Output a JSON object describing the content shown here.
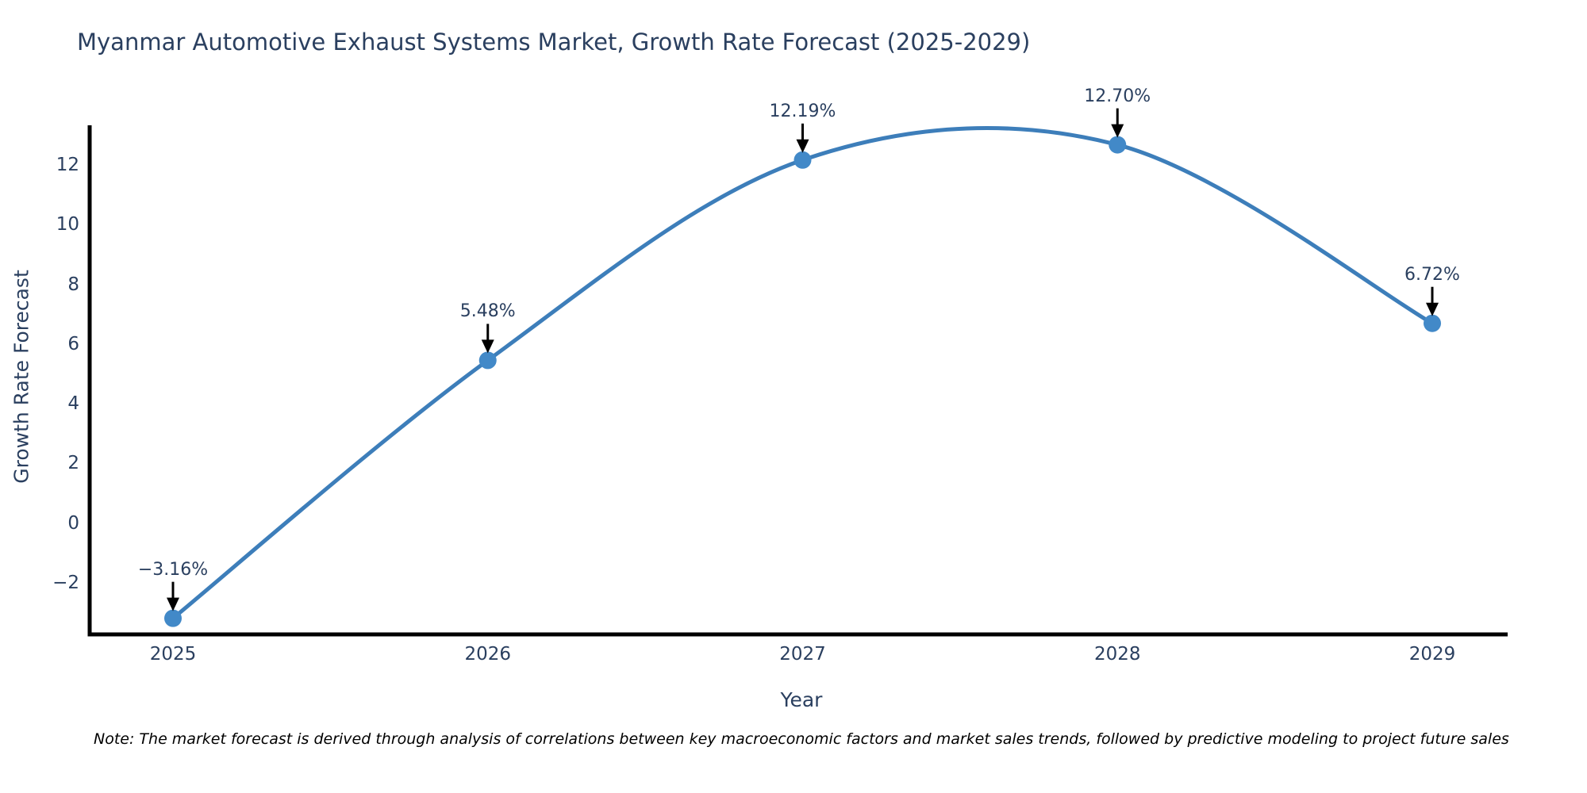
{
  "title": "Myanmar Automotive Exhaust Systems Market, Growth Rate Forecast (2025-2029)",
  "note": "Note: The market forecast is derived through analysis of correlations between key macroeconomic factors and market sales trends, followed by predictive modeling to project future sales",
  "chart_data": {
    "type": "line",
    "title": "Myanmar Automotive Exhaust Systems Market, Growth Rate Forecast (2025-2029)",
    "xlabel": "Year",
    "ylabel": "Growth Rate Forecast",
    "categories": [
      "2025",
      "2026",
      "2027",
      "2028",
      "2029"
    ],
    "values": [
      -3.16,
      5.48,
      12.19,
      12.7,
      6.72
    ],
    "point_labels": [
      "−3.16%",
      "5.48%",
      "12.19%",
      "12.70%",
      "6.72%"
    ],
    "series_name": "Growth Rate Forecast",
    "line_shape": "spline",
    "grid": false,
    "legend": "none",
    "yticks": [
      -2,
      0,
      2,
      4,
      6,
      8,
      10,
      12
    ],
    "ytick_labels": [
      "−2",
      "0",
      "2",
      "4",
      "6",
      "8",
      "10",
      "12"
    ],
    "ylim": [
      -3.7,
      13.3
    ],
    "colors": {
      "line": "#3d7eba",
      "marker": "#4289c8",
      "axis": "#000000",
      "arrow": "#000000",
      "text": "#2a3f5f"
    }
  }
}
